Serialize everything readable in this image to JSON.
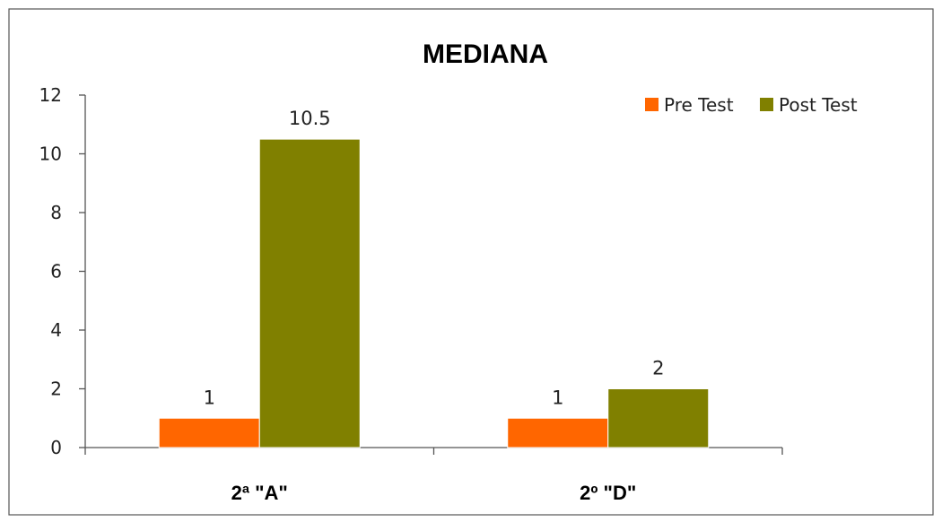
{
  "chart_data": {
    "type": "bar",
    "title": "MEDIANA",
    "categories": [
      "2ª \"A\"",
      "2º \"D\""
    ],
    "series": [
      {
        "name": "Pre Test",
        "values": [
          1,
          1
        ],
        "color": "#ff6600"
      },
      {
        "name": "Post Test",
        "values": [
          10.5,
          2
        ],
        "color": "#808000"
      }
    ],
    "data_labels": [
      [
        "1",
        "1"
      ],
      [
        "10.5",
        "2"
      ]
    ],
    "yticks": [
      "0",
      "2",
      "4",
      "6",
      "8",
      "10",
      "12"
    ],
    "ylim": [
      0,
      12
    ],
    "grid": false,
    "legend_position": "top-right"
  }
}
